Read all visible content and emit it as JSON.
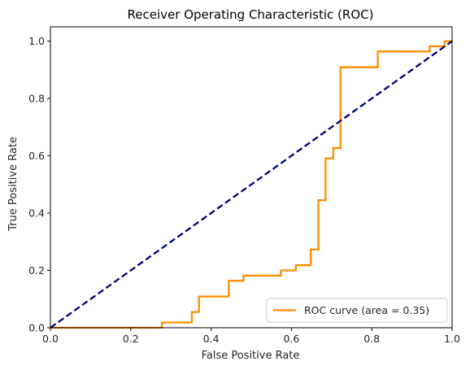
{
  "chart_data": {
    "type": "line",
    "title": "Receiver Operating Characteristic (ROC)",
    "xlabel": "False Positive Rate",
    "ylabel": "True Positive Rate",
    "xlim": [
      0.0,
      1.0
    ],
    "ylim": [
      0.0,
      1.05
    ],
    "xticks": [
      "0.0",
      "0.2",
      "0.4",
      "0.6",
      "0.8",
      "1.0"
    ],
    "xtick_values": [
      0.0,
      0.2,
      0.4,
      0.6,
      0.8,
      1.0
    ],
    "yticks": [
      "0.0",
      "0.2",
      "0.4",
      "0.6",
      "0.8",
      "1.0"
    ],
    "ytick_values": [
      0.0,
      0.2,
      0.4,
      0.6,
      0.8,
      1.0
    ],
    "grid": false,
    "legend_position": "lower-right",
    "series": [
      {
        "name": "ROC curve (area = 0.35)",
        "color": "#ff8c00",
        "style": "solid",
        "points": [
          [
            0.0,
            0.0
          ],
          [
            0.278,
            0.0
          ],
          [
            0.278,
            0.018
          ],
          [
            0.352,
            0.018
          ],
          [
            0.352,
            0.055
          ],
          [
            0.37,
            0.055
          ],
          [
            0.37,
            0.109
          ],
          [
            0.444,
            0.109
          ],
          [
            0.444,
            0.164
          ],
          [
            0.481,
            0.164
          ],
          [
            0.481,
            0.182
          ],
          [
            0.574,
            0.182
          ],
          [
            0.574,
            0.2
          ],
          [
            0.611,
            0.2
          ],
          [
            0.611,
            0.218
          ],
          [
            0.648,
            0.218
          ],
          [
            0.648,
            0.273
          ],
          [
            0.667,
            0.273
          ],
          [
            0.667,
            0.445
          ],
          [
            0.685,
            0.445
          ],
          [
            0.685,
            0.591
          ],
          [
            0.704,
            0.591
          ],
          [
            0.704,
            0.627
          ],
          [
            0.722,
            0.627
          ],
          [
            0.722,
            0.909
          ],
          [
            0.815,
            0.909
          ],
          [
            0.815,
            0.964
          ],
          [
            0.944,
            0.964
          ],
          [
            0.944,
            0.982
          ],
          [
            0.981,
            0.982
          ],
          [
            0.981,
            1.0
          ],
          [
            1.0,
            1.0
          ]
        ]
      },
      {
        "color": "#000080",
        "style": "dashed",
        "points": [
          [
            0.0,
            0.0
          ],
          [
            1.0,
            1.0
          ]
        ]
      }
    ]
  }
}
